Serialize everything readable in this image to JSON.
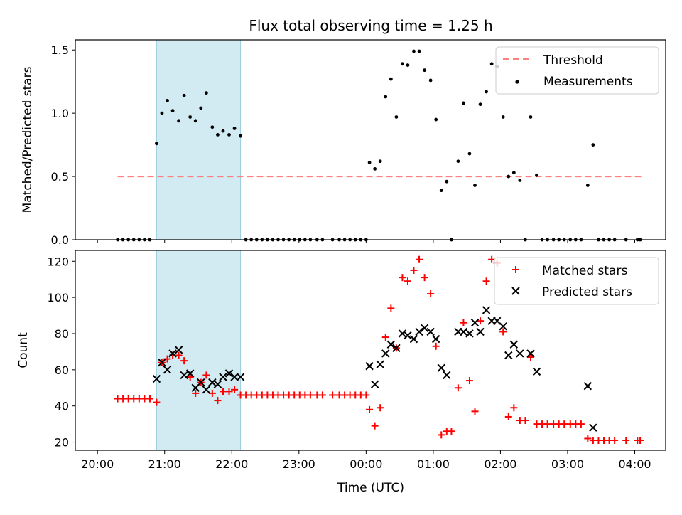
{
  "figure": {
    "title": "Flux total observing time = 1.25 h",
    "xlabel": "Time (UTC)",
    "xtick_labels": [
      "20:00",
      "21:00",
      "22:00",
      "23:00",
      "00:00",
      "01:00",
      "02:00",
      "03:00",
      "04:00"
    ]
  },
  "colors": {
    "threshold": "#ff7f7f",
    "measurement": "#000000",
    "matched": "#ff0000",
    "predicted": "#000000",
    "shade": "#add8e6"
  },
  "chart_data": [
    {
      "type": "scatter",
      "ylabel": "Matched/Predicted stars",
      "ylim": [
        0,
        1.58
      ],
      "yticks": [
        0.0,
        0.5,
        1.0,
        1.5
      ],
      "ytick_labels": [
        "0.0",
        "0.5",
        "1.0",
        "1.5"
      ],
      "xlim_hours": [
        19.67,
        28.46
      ],
      "legend": "top-right",
      "shaded_span_hours": [
        20.88,
        22.13
      ],
      "threshold": {
        "name": "Threshold",
        "value": 0.5,
        "x_hours": [
          20.3,
          28.1
        ]
      },
      "series": [
        {
          "name": "Measurements",
          "points": [
            [
              20.3,
              0
            ],
            [
              20.38,
              0
            ],
            [
              20.46,
              0
            ],
            [
              20.54,
              0
            ],
            [
              20.62,
              0
            ],
            [
              20.7,
              0
            ],
            [
              20.78,
              0
            ],
            [
              20.88,
              0.76
            ],
            [
              20.96,
              1.0
            ],
            [
              21.04,
              1.1
            ],
            [
              21.12,
              1.02
            ],
            [
              21.21,
              0.94
            ],
            [
              21.29,
              1.14
            ],
            [
              21.38,
              0.97
            ],
            [
              21.46,
              0.94
            ],
            [
              21.54,
              1.04
            ],
            [
              21.62,
              1.16
            ],
            [
              21.71,
              0.89
            ],
            [
              21.79,
              0.83
            ],
            [
              21.87,
              0.86
            ],
            [
              21.96,
              0.83
            ],
            [
              22.04,
              0.88
            ],
            [
              22.13,
              0.82
            ],
            [
              22.21,
              0
            ],
            [
              22.29,
              0
            ],
            [
              22.37,
              0
            ],
            [
              22.45,
              0
            ],
            [
              22.53,
              0
            ],
            [
              22.61,
              0
            ],
            [
              22.69,
              0
            ],
            [
              22.77,
              0
            ],
            [
              22.85,
              0
            ],
            [
              22.93,
              0
            ],
            [
              23.01,
              0
            ],
            [
              23.09,
              0
            ],
            [
              23.17,
              0
            ],
            [
              23.27,
              0
            ],
            [
              23.35,
              0
            ],
            [
              23.5,
              0
            ],
            [
              23.6,
              0
            ],
            [
              23.68,
              0
            ],
            [
              23.76,
              0
            ],
            [
              23.84,
              0
            ],
            [
              23.92,
              0
            ],
            [
              24.0,
              0
            ],
            [
              24.05,
              0.61
            ],
            [
              24.13,
              0.56
            ],
            [
              24.21,
              0.62
            ],
            [
              24.29,
              1.13
            ],
            [
              24.37,
              1.27
            ],
            [
              24.45,
              0.97
            ],
            [
              24.54,
              1.39
            ],
            [
              24.62,
              1.38
            ],
            [
              24.71,
              1.49
            ],
            [
              24.79,
              1.49
            ],
            [
              24.87,
              1.34
            ],
            [
              24.96,
              1.26
            ],
            [
              25.04,
              0.95
            ],
            [
              25.12,
              0.39
            ],
            [
              25.2,
              0.46
            ],
            [
              25.27,
              0.0
            ],
            [
              25.37,
              0.62
            ],
            [
              25.45,
              1.08
            ],
            [
              25.54,
              0.68
            ],
            [
              25.62,
              0.43
            ],
            [
              25.7,
              1.07
            ],
            [
              25.79,
              1.17
            ],
            [
              25.87,
              1.39
            ],
            [
              25.95,
              1.37
            ],
            [
              26.04,
              0.97
            ],
            [
              26.12,
              0.5
            ],
            [
              26.2,
              0.53
            ],
            [
              26.29,
              0.47
            ],
            [
              26.37,
              0.0
            ],
            [
              26.45,
              0.97
            ],
            [
              26.54,
              0.51
            ],
            [
              26.62,
              0
            ],
            [
              26.7,
              0
            ],
            [
              26.79,
              0
            ],
            [
              26.87,
              0
            ],
            [
              26.95,
              0
            ],
            [
              27.04,
              0
            ],
            [
              27.12,
              0
            ],
            [
              27.2,
              0
            ],
            [
              27.3,
              0.43
            ],
            [
              27.38,
              0.75
            ],
            [
              27.46,
              0
            ],
            [
              27.54,
              0
            ],
            [
              27.62,
              0
            ],
            [
              27.7,
              0
            ],
            [
              27.87,
              0
            ],
            [
              28.04,
              0
            ],
            [
              28.08,
              0
            ]
          ]
        }
      ]
    },
    {
      "type": "scatter",
      "ylabel": "Count",
      "ylim": [
        15.5,
        126
      ],
      "yticks": [
        20,
        40,
        60,
        80,
        100,
        120
      ],
      "ytick_labels": [
        "20",
        "40",
        "60",
        "80",
        "100",
        "120"
      ],
      "xlim_hours": [
        19.67,
        28.46
      ],
      "legend": "top-right",
      "shaded_span_hours": [
        20.88,
        22.13
      ],
      "series": [
        {
          "name": "Matched stars",
          "marker": "plus",
          "points": [
            [
              20.3,
              44
            ],
            [
              20.38,
              44
            ],
            [
              20.46,
              44
            ],
            [
              20.54,
              44
            ],
            [
              20.62,
              44
            ],
            [
              20.7,
              44
            ],
            [
              20.78,
              44
            ],
            [
              20.88,
              42
            ],
            [
              20.96,
              64
            ],
            [
              21.04,
              66
            ],
            [
              21.12,
              68
            ],
            [
              21.21,
              68
            ],
            [
              21.29,
              65
            ],
            [
              21.38,
              56
            ],
            [
              21.46,
              47
            ],
            [
              21.54,
              53
            ],
            [
              21.62,
              57
            ],
            [
              21.71,
              47
            ],
            [
              21.79,
              43
            ],
            [
              21.87,
              48
            ],
            [
              21.96,
              48
            ],
            [
              22.04,
              49
            ],
            [
              22.13,
              46
            ],
            [
              22.21,
              46
            ],
            [
              22.29,
              46
            ],
            [
              22.37,
              46
            ],
            [
              22.45,
              46
            ],
            [
              22.53,
              46
            ],
            [
              22.61,
              46
            ],
            [
              22.69,
              46
            ],
            [
              22.77,
              46
            ],
            [
              22.85,
              46
            ],
            [
              22.93,
              46
            ],
            [
              23.01,
              46
            ],
            [
              23.09,
              46
            ],
            [
              23.17,
              46
            ],
            [
              23.27,
              46
            ],
            [
              23.35,
              46
            ],
            [
              23.5,
              46
            ],
            [
              23.6,
              46
            ],
            [
              23.68,
              46
            ],
            [
              23.76,
              46
            ],
            [
              23.84,
              46
            ],
            [
              23.92,
              46
            ],
            [
              24.0,
              46
            ],
            [
              24.05,
              38
            ],
            [
              24.13,
              29
            ],
            [
              24.21,
              39
            ],
            [
              24.29,
              78
            ],
            [
              24.37,
              94
            ],
            [
              24.45,
              72
            ],
            [
              24.54,
              111
            ],
            [
              24.62,
              109
            ],
            [
              24.71,
              115
            ],
            [
              24.79,
              121
            ],
            [
              24.87,
              111
            ],
            [
              24.96,
              102
            ],
            [
              25.04,
              73
            ],
            [
              25.12,
              24
            ],
            [
              25.2,
              26
            ],
            [
              25.27,
              26
            ],
            [
              25.37,
              50
            ],
            [
              25.45,
              86
            ],
            [
              25.54,
              54
            ],
            [
              25.62,
              37
            ],
            [
              25.7,
              87
            ],
            [
              25.79,
              109
            ],
            [
              25.87,
              121
            ],
            [
              25.95,
              119
            ],
            [
              26.04,
              81
            ],
            [
              26.12,
              34
            ],
            [
              26.2,
              39
            ],
            [
              26.29,
              32
            ],
            [
              26.37,
              32
            ],
            [
              26.45,
              67
            ],
            [
              26.54,
              30
            ],
            [
              26.62,
              30
            ],
            [
              26.7,
              30
            ],
            [
              26.79,
              30
            ],
            [
              26.87,
              30
            ],
            [
              26.95,
              30
            ],
            [
              27.04,
              30
            ],
            [
              27.12,
              30
            ],
            [
              27.2,
              30
            ],
            [
              27.3,
              22
            ],
            [
              27.38,
              21
            ],
            [
              27.46,
              21
            ],
            [
              27.54,
              21
            ],
            [
              27.62,
              21
            ],
            [
              27.7,
              21
            ],
            [
              27.87,
              21
            ],
            [
              28.04,
              21
            ],
            [
              28.08,
              21
            ]
          ]
        },
        {
          "name": "Predicted stars",
          "marker": "x",
          "points": [
            [
              20.88,
              55
            ],
            [
              20.96,
              64
            ],
            [
              21.04,
              60
            ],
            [
              21.12,
              69
            ],
            [
              21.21,
              71
            ],
            [
              21.29,
              57
            ],
            [
              21.38,
              58
            ],
            [
              21.46,
              50
            ],
            [
              21.54,
              53
            ],
            [
              21.62,
              49
            ],
            [
              21.71,
              53
            ],
            [
              21.79,
              52
            ],
            [
              21.87,
              56
            ],
            [
              21.96,
              58
            ],
            [
              22.04,
              56
            ],
            [
              22.13,
              56
            ],
            [
              24.05,
              62
            ],
            [
              24.13,
              52
            ],
            [
              24.21,
              63
            ],
            [
              24.29,
              69
            ],
            [
              24.37,
              74
            ],
            [
              24.45,
              72
            ],
            [
              24.54,
              80
            ],
            [
              24.62,
              79
            ],
            [
              24.71,
              77
            ],
            [
              24.79,
              81
            ],
            [
              24.87,
              83
            ],
            [
              24.96,
              81
            ],
            [
              25.04,
              77
            ],
            [
              25.12,
              61
            ],
            [
              25.2,
              57
            ],
            [
              25.37,
              81
            ],
            [
              25.45,
              81
            ],
            [
              25.54,
              80
            ],
            [
              25.62,
              86
            ],
            [
              25.7,
              81
            ],
            [
              25.79,
              93
            ],
            [
              25.87,
              87
            ],
            [
              25.95,
              87
            ],
            [
              26.04,
              84
            ],
            [
              26.12,
              68
            ],
            [
              26.2,
              74
            ],
            [
              26.29,
              69
            ],
            [
              26.45,
              69
            ],
            [
              26.54,
              59
            ],
            [
              27.3,
              51
            ],
            [
              27.38,
              28
            ]
          ]
        }
      ]
    }
  ]
}
